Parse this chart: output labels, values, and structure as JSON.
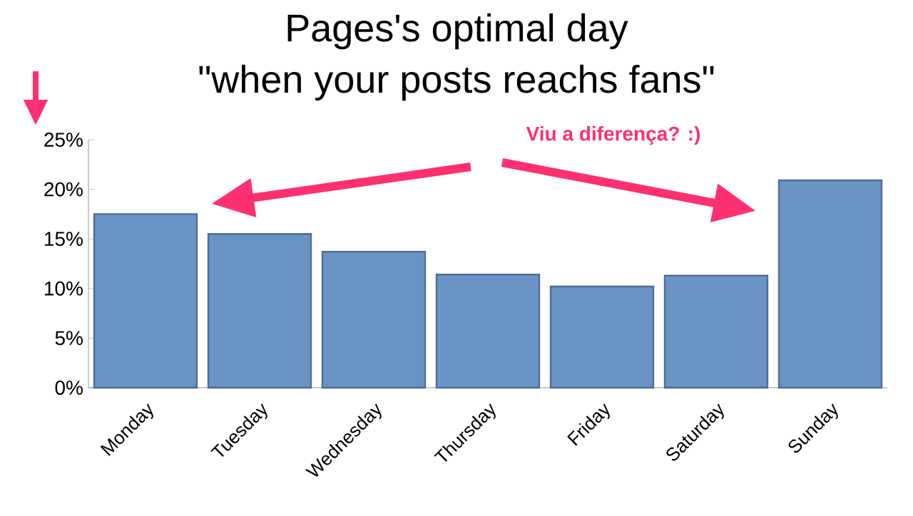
{
  "chart_data": {
    "type": "bar",
    "title": "Pages's optimal day",
    "subtitle": "\"when your posts reachs fans\"",
    "annotations": [
      "Viu a diferença? :)"
    ],
    "categories": [
      "Monday",
      "Tuesday",
      "Wednesday",
      "Thursday",
      "Friday",
      "Saturday",
      "Sunday"
    ],
    "values": [
      17.5,
      15.5,
      13.7,
      11.4,
      10.2,
      11.3,
      20.9
    ],
    "color": "#6a93c6",
    "ylim": [
      0,
      25
    ],
    "yticks": [
      {
        "value": 0,
        "label": "0%"
      },
      {
        "value": 5,
        "label": "5%"
      },
      {
        "value": 10,
        "label": "10%"
      },
      {
        "value": 15,
        "label": "15%"
      },
      {
        "value": 20,
        "label": "20%"
      },
      {
        "value": 25,
        "label": "25%"
      }
    ]
  }
}
